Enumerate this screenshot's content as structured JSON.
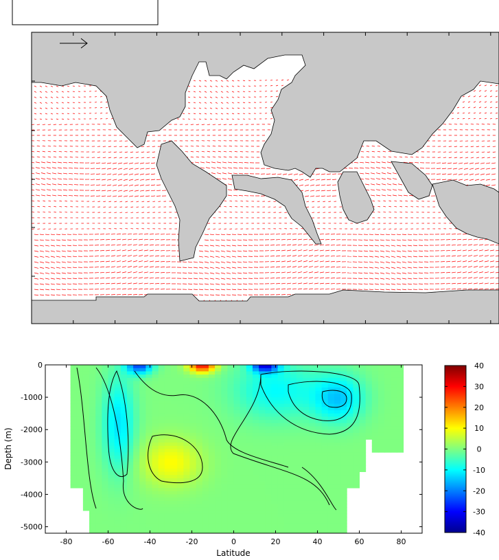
{
  "colors": {
    "land": "#c8c8c8",
    "vector": "#ff0000",
    "contour": "#000000",
    "axis": "#000000"
  },
  "chart_data": [
    {
      "type": "quiver",
      "xlim": [
        0,
        360
      ],
      "ylim": [
        -80,
        80
      ],
      "grid": false,
      "reference_arrow": true,
      "map_key_box": true,
      "field_description": "ocean velocity vectors over world map; land masked"
    },
    {
      "type": "heatmap",
      "colormap": "jet",
      "xlabel": "Latitude",
      "ylabel": "Depth (m)",
      "xlim": [
        -90,
        90
      ],
      "ylim": [
        -5200,
        0
      ],
      "xticks": [
        "-80",
        "-60",
        "-40",
        "-20",
        "0",
        "20",
        "40",
        "60",
        "80"
      ],
      "yticks": [
        "0",
        "-1000",
        "-2000",
        "-3000",
        "-4000",
        "-5000"
      ],
      "contours": true,
      "colorbar": {
        "range": [
          -40,
          40
        ],
        "ticks": [
          "40",
          "30",
          "20",
          "10",
          "0",
          "-10",
          "-20",
          "-30",
          "-40"
        ]
      }
    }
  ]
}
